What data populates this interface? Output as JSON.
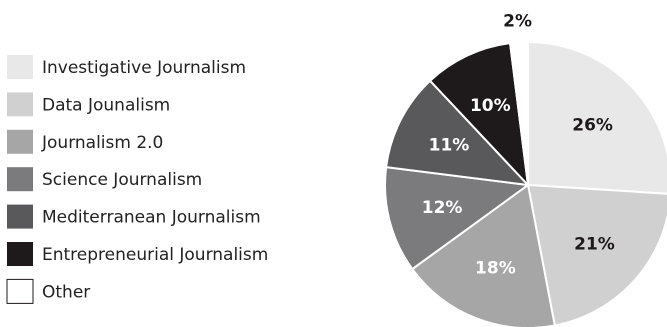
{
  "chart_data": {
    "type": "pie",
    "title": "",
    "legend_position": "left",
    "slices": [
      {
        "label": "Investigative Journalism",
        "value": 26,
        "value_label": "26%",
        "color": "#e8e8e8",
        "label_color": "#1e1a1b"
      },
      {
        "label": "Data Jounalism",
        "value": 21,
        "value_label": "21%",
        "color": "#d0d0d1",
        "label_color": "#1e1a1b"
      },
      {
        "label": "Journalism 2.0",
        "value": 18,
        "value_label": "18%",
        "color": "#a6a6a7",
        "label_color": "#ffffff"
      },
      {
        "label": "Science Journalism",
        "value": 12,
        "value_label": "12%",
        "color": "#7b7b7d",
        "label_color": "#ffffff"
      },
      {
        "label": "Mediterranean Journalism",
        "value": 11,
        "value_label": "11%",
        "color": "#59595b",
        "label_color": "#ffffff"
      },
      {
        "label": "Entrepreneurial Journalism",
        "value": 10,
        "value_label": "10%",
        "color": "#1e1a1b",
        "label_color": "#ffffff"
      },
      {
        "label": "Other",
        "value": 2,
        "value_label": "2%",
        "color": "#ffffff",
        "label_color": "#1e1a1b"
      }
    ]
  }
}
